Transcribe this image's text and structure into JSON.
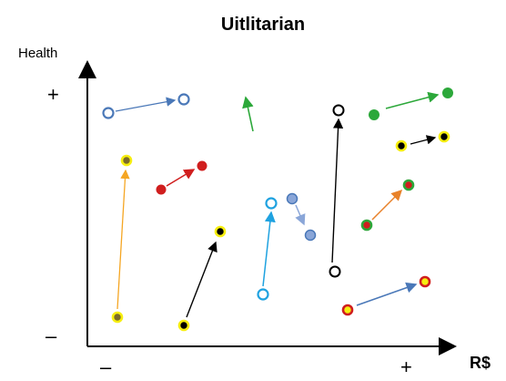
{
  "title": "Uitlitarian",
  "y_axis_label": "Health",
  "x_axis_label": "R$",
  "y_plus": "+",
  "y_minus": "–",
  "x_minus": "–",
  "x_plus": "+",
  "colors": {
    "axis": "#000000",
    "blue_steel": "#4a78b8",
    "green": "#2ca83a",
    "red": "#d01e1e",
    "orange": "#f5a623",
    "black": "#000000",
    "sky": "#1fa2e0",
    "light_blue": "#8aa6d8",
    "yellow": "#f6ee10",
    "olive": "#7a6a2a"
  }
}
